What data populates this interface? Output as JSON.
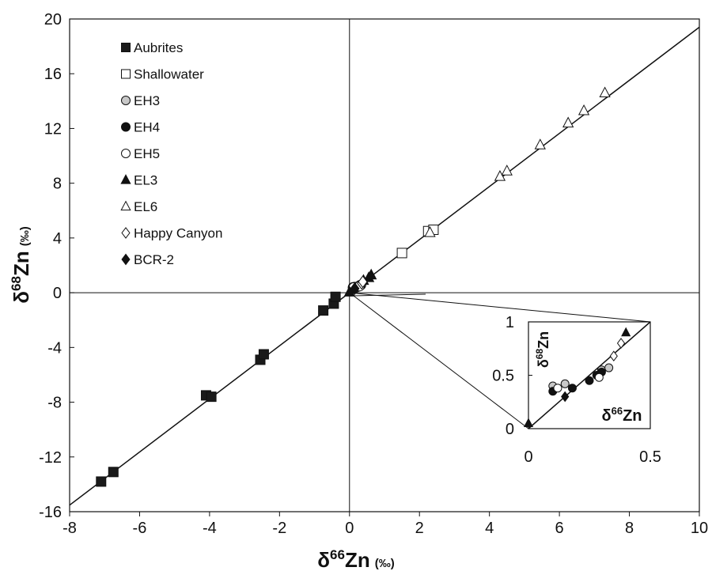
{
  "chart_data": {
    "type": "scatter",
    "xlabel_parts": {
      "delta": "δ",
      "sup": "66",
      "element": "Zn",
      "unit": "(‰)"
    },
    "ylabel_parts": {
      "delta": "δ",
      "sup": "68",
      "element": "Zn",
      "unit": "(‰)"
    },
    "xlim": [
      -8,
      10
    ],
    "ylim": [
      -16,
      20
    ],
    "xticks": [
      "-8",
      "-6",
      "-4",
      "-2",
      "0",
      "2",
      "4",
      "6",
      "8",
      "10"
    ],
    "yticks": [
      "20",
      "16",
      "12",
      "8",
      "4",
      "0",
      "-4",
      "-8",
      "-12",
      "-16"
    ],
    "legend_position": "top-left",
    "fit_line": {
      "slope": 1.94,
      "intercept": 0.0
    },
    "series": [
      {
        "name": "Aubrites",
        "marker": "square",
        "fill": "#1a1a1a",
        "points": [
          [
            -7.1,
            -13.8
          ],
          [
            -6.75,
            -13.1
          ],
          [
            -4.1,
            -7.5
          ],
          [
            -3.95,
            -7.6
          ],
          [
            -2.55,
            -4.9
          ],
          [
            -2.45,
            -4.5
          ],
          [
            -0.75,
            -1.3
          ],
          [
            -0.45,
            -0.8
          ],
          [
            -0.4,
            -0.3
          ]
        ]
      },
      {
        "name": "Shallowater",
        "marker": "square",
        "fill": "#ffffff",
        "points": [
          [
            1.5,
            2.9
          ],
          [
            2.25,
            4.5
          ],
          [
            2.4,
            4.6
          ]
        ]
      },
      {
        "name": "EH3",
        "marker": "circle",
        "fill": "#c8c8c8",
        "points": [
          [
            0.1,
            0.4
          ],
          [
            0.15,
            0.42
          ],
          [
            0.3,
            0.55
          ],
          [
            0.33,
            0.57
          ]
        ]
      },
      {
        "name": "EH4",
        "marker": "circle",
        "fill": "#111111",
        "points": [
          [
            0.1,
            0.35
          ],
          [
            0.18,
            0.38
          ],
          [
            0.25,
            0.45
          ],
          [
            0.28,
            0.5
          ],
          [
            0.3,
            0.53
          ]
        ]
      },
      {
        "name": "EH5",
        "marker": "circle",
        "fill": "#ffffff",
        "points": [
          [
            0.12,
            0.38
          ],
          [
            0.29,
            0.48
          ]
        ]
      },
      {
        "name": "EL3",
        "marker": "triangle",
        "fill": "#111111",
        "points": [
          [
            0.0,
            0.05
          ],
          [
            0.4,
            0.9
          ],
          [
            0.55,
            1.1
          ],
          [
            0.62,
            1.3
          ]
        ]
      },
      {
        "name": "EL6",
        "marker": "triangle",
        "fill": "#ffffff",
        "points": [
          [
            2.3,
            4.4
          ],
          [
            4.3,
            8.5
          ],
          [
            4.5,
            8.9
          ],
          [
            5.45,
            10.8
          ],
          [
            6.25,
            12.4
          ],
          [
            6.7,
            13.3
          ],
          [
            7.3,
            14.6
          ]
        ]
      },
      {
        "name": "Happy Canyon",
        "marker": "diamond",
        "fill": "#ffffff",
        "points": [
          [
            0.35,
            0.68
          ],
          [
            0.38,
            0.8
          ]
        ]
      },
      {
        "name": "BCR-2",
        "marker": "diamond",
        "fill": "#111111",
        "points": [
          [
            0.15,
            0.3
          ]
        ]
      }
    ],
    "inset": {
      "xlim": [
        0,
        0.5
      ],
      "ylim": [
        0,
        1
      ],
      "xticks": [
        "0",
        "0.5"
      ],
      "yticks": [
        "1",
        "0.5",
        "0"
      ],
      "xlabel_parts": {
        "delta": "δ",
        "sup": "66",
        "element": "Zn"
      },
      "ylabel_parts": {
        "delta": "δ",
        "sup": "68",
        "element": "Zn"
      }
    }
  }
}
